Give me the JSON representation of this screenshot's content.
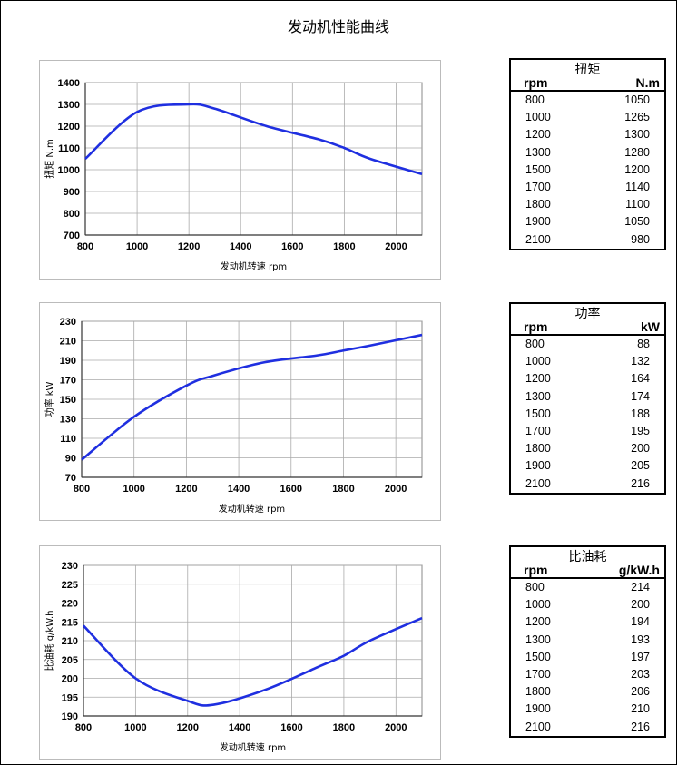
{
  "title": "发动机性能曲线",
  "line_color": "#1f2fe0",
  "chart_data": [
    {
      "type": "line",
      "xlabel": "发动机转速 rpm",
      "ylabel": "扭矩  N.m",
      "xlim": [
        800,
        2100
      ],
      "ylim": [
        700,
        1400
      ],
      "xticks": [
        800,
        1000,
        1200,
        1400,
        1600,
        1800,
        2000
      ],
      "yticks": [
        700,
        800,
        900,
        1000,
        1100,
        1200,
        1300,
        1400
      ],
      "grid": true,
      "x": [
        800,
        1000,
        1200,
        1300,
        1500,
        1700,
        1800,
        1900,
        2100
      ],
      "values": [
        1050,
        1265,
        1300,
        1280,
        1200,
        1140,
        1100,
        1050,
        980
      ]
    },
    {
      "type": "line",
      "xlabel": "发动机转速 rpm",
      "ylabel": "功率  kW",
      "xlim": [
        800,
        2100
      ],
      "ylim": [
        70,
        230
      ],
      "xticks": [
        800,
        1000,
        1200,
        1400,
        1600,
        1800,
        2000
      ],
      "yticks": [
        70,
        90,
        110,
        130,
        150,
        170,
        190,
        210,
        230
      ],
      "grid": true,
      "x": [
        800,
        1000,
        1200,
        1300,
        1500,
        1700,
        1800,
        1900,
        2100
      ],
      "values": [
        88,
        132,
        164,
        174,
        188,
        195,
        200,
        205,
        216
      ]
    },
    {
      "type": "line",
      "xlabel": "发动机转速 rpm",
      "ylabel": "比油耗  g/kW.h",
      "xlim": [
        800,
        2100
      ],
      "ylim": [
        190,
        230
      ],
      "xticks": [
        800,
        1000,
        1200,
        1400,
        1600,
        1800,
        2000
      ],
      "yticks": [
        190,
        195,
        200,
        205,
        210,
        215,
        220,
        225,
        230
      ],
      "grid": true,
      "x": [
        800,
        1000,
        1200,
        1300,
        1500,
        1700,
        1800,
        1900,
        2100
      ],
      "values": [
        214,
        200,
        194,
        193,
        197,
        203,
        206,
        210,
        216
      ]
    }
  ],
  "tables": [
    {
      "caption": "扭矩",
      "col1": "rpm",
      "col2": "N.m",
      "rows": [
        [
          "800",
          "1050"
        ],
        [
          "1000",
          "1265"
        ],
        [
          "1200",
          "1300"
        ],
        [
          "1300",
          "1280"
        ],
        [
          "1500",
          "1200"
        ],
        [
          "1700",
          "1140"
        ],
        [
          "1800",
          "1100"
        ],
        [
          "1900",
          "1050"
        ],
        [
          "2100",
          "980"
        ]
      ]
    },
    {
      "caption": "功率",
      "col1": "rpm",
      "col2": "kW",
      "rows": [
        [
          "800",
          "88"
        ],
        [
          "1000",
          "132"
        ],
        [
          "1200",
          "164"
        ],
        [
          "1300",
          "174"
        ],
        [
          "1500",
          "188"
        ],
        [
          "1700",
          "195"
        ],
        [
          "1800",
          "200"
        ],
        [
          "1900",
          "205"
        ],
        [
          "2100",
          "216"
        ]
      ]
    },
    {
      "caption": "比油耗",
      "col1": "rpm",
      "col2": "g/kW.h",
      "rows": [
        [
          "800",
          "214"
        ],
        [
          "1000",
          "200"
        ],
        [
          "1200",
          "194"
        ],
        [
          "1300",
          "193"
        ],
        [
          "1500",
          "197"
        ],
        [
          "1700",
          "203"
        ],
        [
          "1800",
          "206"
        ],
        [
          "1900",
          "210"
        ],
        [
          "2100",
          "216"
        ]
      ]
    }
  ]
}
